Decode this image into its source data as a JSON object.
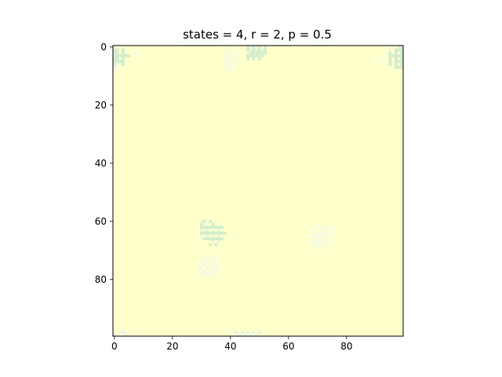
{
  "chart_data": {
    "type": "heatmap",
    "title": "states = 4, r = 2, p = 0.5",
    "xlabel": "",
    "ylabel": "",
    "grid_size": [
      100,
      100
    ],
    "xlim": [
      -0.5,
      99.5
    ],
    "ylim": [
      99.5,
      -0.5
    ],
    "x_ticks": [
      0,
      20,
      40,
      60,
      80
    ],
    "y_ticks": [
      0,
      20,
      40,
      60,
      80
    ],
    "x_tick_labels": [
      "0",
      "20",
      "40",
      "60",
      "80"
    ],
    "y_tick_labels": [
      "0",
      "20",
      "40",
      "60",
      "80"
    ],
    "grid": false,
    "colormap": {
      "0": "#ffffcc",
      "1": "#d1edcc",
      "2": "#f4f9e6",
      "3": "#eaf5d6"
    },
    "background_state": 0,
    "cells": [
      {
        "state": 1,
        "cells": [
          [
            1,
            0
          ],
          [
            2,
            0
          ],
          [
            3,
            0
          ],
          [
            4,
            0
          ],
          [
            5,
            0
          ],
          [
            6,
            0
          ],
          [
            1,
            1
          ],
          [
            2,
            1
          ],
          [
            3,
            1
          ],
          [
            4,
            1
          ],
          [
            5,
            1
          ],
          [
            3,
            2
          ],
          [
            3,
            4
          ],
          [
            3,
            5
          ],
          [
            5,
            2
          ],
          [
            5,
            3
          ],
          [
            6,
            3
          ],
          [
            3,
            3
          ],
          [
            4,
            3
          ],
          [
            1,
            3
          ],
          [
            2,
            3
          ]
        ]
      },
      {
        "state": 2,
        "cells": [
          [
            2,
            7
          ],
          [
            2,
            8
          ]
        ]
      },
      {
        "state": 2,
        "cells": [
          [
            0,
            96
          ],
          [
            1,
            95
          ],
          [
            2,
            94
          ],
          [
            3,
            93
          ],
          [
            4,
            92
          ],
          [
            5,
            91
          ]
        ]
      },
      {
        "state": 2,
        "cells": [
          [
            7,
            0
          ],
          [
            8,
            0
          ],
          [
            6,
            1
          ]
        ]
      },
      {
        "state": 1,
        "cells": [
          [
            2,
            95
          ],
          [
            3,
            95
          ],
          [
            4,
            95
          ],
          [
            5,
            95
          ],
          [
            6,
            95
          ],
          [
            1,
            97
          ],
          [
            2,
            97
          ],
          [
            3,
            97
          ],
          [
            4,
            97
          ],
          [
            5,
            97
          ],
          [
            6,
            97
          ],
          [
            7,
            97
          ],
          [
            1,
            98
          ],
          [
            3,
            98
          ],
          [
            5,
            98
          ],
          [
            7,
            98
          ],
          [
            2,
            99
          ],
          [
            3,
            99
          ],
          [
            4,
            99
          ],
          [
            5,
            99
          ],
          [
            6,
            99
          ],
          [
            7,
            99
          ],
          [
            0,
            98
          ],
          [
            0,
            99
          ],
          [
            1,
            99
          ],
          [
            3,
            96
          ]
        ]
      },
      {
        "state": 2,
        "cells": [
          [
            0,
            40
          ],
          [
            2,
            38
          ],
          [
            2,
            40
          ],
          [
            2,
            42
          ],
          [
            3,
            39
          ],
          [
            3,
            41
          ],
          [
            4,
            38
          ],
          [
            4,
            40
          ],
          [
            4,
            42
          ],
          [
            5,
            39
          ],
          [
            5,
            41
          ],
          [
            6,
            38
          ],
          [
            6,
            40
          ],
          [
            6,
            42
          ],
          [
            7,
            39
          ],
          [
            7,
            41
          ],
          [
            8,
            40
          ]
        ]
      },
      {
        "state": 1,
        "cells": [
          [
            0,
            46
          ],
          [
            0,
            48
          ],
          [
            0,
            50
          ],
          [
            0,
            52
          ],
          [
            1,
            46
          ],
          [
            1,
            48
          ],
          [
            1,
            50
          ],
          [
            1,
            52
          ],
          [
            2,
            47
          ],
          [
            2,
            48
          ],
          [
            2,
            49
          ],
          [
            2,
            50
          ],
          [
            2,
            51
          ],
          [
            2,
            52
          ],
          [
            3,
            46
          ],
          [
            3,
            47
          ],
          [
            3,
            48
          ],
          [
            3,
            49
          ],
          [
            3,
            50
          ],
          [
            3,
            51
          ],
          [
            4,
            46
          ],
          [
            4,
            48
          ],
          [
            4,
            50
          ]
        ]
      },
      {
        "state": 3,
        "cells": [
          [
            1,
            47
          ],
          [
            1,
            49
          ],
          [
            1,
            51
          ],
          [
            0,
            47
          ],
          [
            0,
            49
          ]
        ]
      },
      {
        "state": 1,
        "cells": [
          [
            60,
            31
          ],
          [
            60,
            33
          ],
          [
            61,
            30
          ],
          [
            61,
            34
          ],
          [
            62,
            30
          ],
          [
            62,
            31
          ],
          [
            62,
            32
          ],
          [
            62,
            33
          ],
          [
            62,
            34
          ],
          [
            62,
            35
          ],
          [
            62,
            36
          ],
          [
            62,
            37
          ],
          [
            64,
            30
          ],
          [
            64,
            31
          ],
          [
            64,
            32
          ],
          [
            64,
            33
          ],
          [
            64,
            34
          ],
          [
            64,
            35
          ],
          [
            64,
            36
          ],
          [
            64,
            37
          ],
          [
            64,
            38
          ],
          [
            66,
            31
          ],
          [
            66,
            32
          ],
          [
            66,
            33
          ],
          [
            66,
            34
          ],
          [
            66,
            35
          ],
          [
            66,
            36
          ],
          [
            66,
            37
          ],
          [
            68,
            33
          ],
          [
            68,
            35
          ]
        ]
      },
      {
        "state": 3,
        "cells": [
          [
            63,
            30
          ],
          [
            63,
            32
          ],
          [
            63,
            34
          ],
          [
            63,
            36
          ],
          [
            65,
            30
          ],
          [
            65,
            32
          ],
          [
            65,
            34
          ],
          [
            65,
            36
          ],
          [
            60,
            30
          ],
          [
            67,
            34
          ],
          [
            67,
            36
          ]
        ]
      },
      {
        "state": 2,
        "cells": [
          [
            62,
            70
          ],
          [
            62,
            72
          ],
          [
            62,
            74
          ],
          [
            63,
            68
          ],
          [
            63,
            71
          ],
          [
            63,
            73
          ],
          [
            63,
            75
          ],
          [
            64,
            69
          ],
          [
            64,
            71
          ],
          [
            64,
            73
          ],
          [
            64,
            75
          ],
          [
            65,
            68
          ],
          [
            65,
            70
          ],
          [
            65,
            72
          ],
          [
            65,
            74
          ],
          [
            66,
            69
          ],
          [
            66,
            71
          ],
          [
            66,
            73
          ],
          [
            67,
            68
          ],
          [
            67,
            70
          ],
          [
            67,
            72
          ],
          [
            67,
            74
          ],
          [
            68,
            69
          ],
          [
            68,
            71
          ],
          [
            68,
            73
          ],
          [
            69,
            70
          ],
          [
            69,
            72
          ]
        ]
      },
      {
        "state": 2,
        "cells": [
          [
            72,
            32
          ],
          [
            72,
            34
          ],
          [
            73,
            31
          ],
          [
            73,
            33
          ],
          [
            73,
            35
          ],
          [
            74,
            30
          ],
          [
            74,
            32
          ],
          [
            74,
            34
          ],
          [
            74,
            36
          ],
          [
            75,
            29
          ],
          [
            75,
            31
          ],
          [
            75,
            33
          ],
          [
            75,
            35
          ],
          [
            76,
            30
          ],
          [
            76,
            32
          ],
          [
            76,
            34
          ],
          [
            76,
            36
          ],
          [
            77,
            29
          ],
          [
            77,
            31
          ],
          [
            77,
            33
          ],
          [
            77,
            35
          ],
          [
            78,
            30
          ],
          [
            78,
            32
          ],
          [
            78,
            34
          ],
          [
            79,
            31
          ],
          [
            79,
            33
          ]
        ]
      },
      {
        "state": 2,
        "cells": [
          [
            98,
            2
          ],
          [
            98,
            4
          ],
          [
            99,
            1
          ],
          [
            99,
            3
          ],
          [
            99,
            5
          ]
        ]
      },
      {
        "state": 3,
        "cells": [
          [
            98,
            3
          ],
          [
            99,
            0
          ],
          [
            99,
            4
          ]
        ]
      },
      {
        "state": 3,
        "cells": [
          [
            98,
            42
          ],
          [
            98,
            44
          ],
          [
            98,
            46
          ],
          [
            98,
            48
          ],
          [
            98,
            50
          ],
          [
            99,
            43
          ],
          [
            99,
            45
          ],
          [
            99,
            47
          ],
          [
            99,
            49
          ]
        ]
      },
      {
        "state": 2,
        "cells": [
          [
            98,
            41
          ],
          [
            99,
            42
          ],
          [
            99,
            44
          ],
          [
            99,
            46
          ],
          [
            99,
            48
          ]
        ]
      }
    ]
  }
}
